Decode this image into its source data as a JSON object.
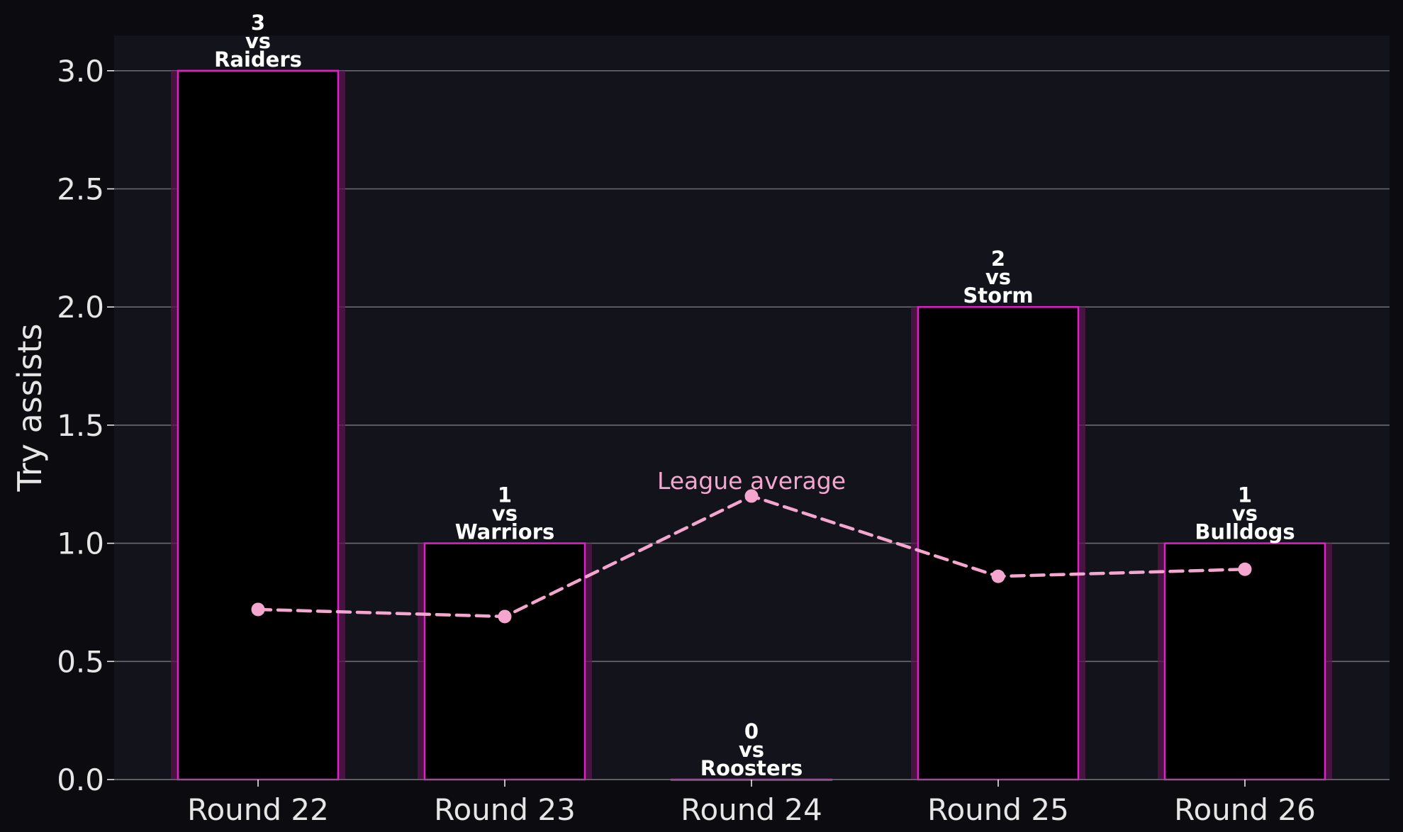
{
  "chart_data": {
    "type": "bar",
    "categories": [
      "Round 22",
      "Round 23",
      "Round 24",
      "Round 25",
      "Round 26"
    ],
    "values": [
      3,
      1,
      0,
      2,
      1
    ],
    "opponents": [
      "Raiders",
      "Warriors",
      "Roosters",
      "Storm",
      "Bulldogs"
    ],
    "vs_text": "vs",
    "ylabel": "Try assists",
    "ylim": [
      0,
      3.15
    ],
    "yticks": [
      "0.0",
      "0.5",
      "1.0",
      "1.5",
      "2.0",
      "2.5",
      "3.0"
    ],
    "grid": true,
    "line_series": {
      "name": "League average",
      "type": "line",
      "style": "dashed",
      "values": [
        0.72,
        0.69,
        1.2,
        0.86,
        0.89
      ]
    },
    "colors": {
      "page_background": "#0c0c10",
      "plot_background": "#13131b",
      "bar_fill": "#000000",
      "bar_edge": "#e020c8",
      "bar_glow": "#5a1650",
      "line": "#f5a6cf",
      "grid": "#6a6a70",
      "text": "#e6e6e6"
    }
  }
}
